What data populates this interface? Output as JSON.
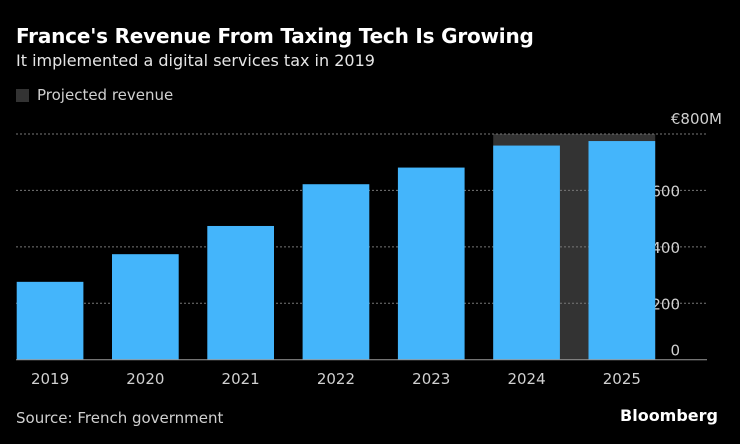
{
  "title": "France's Revenue From Taxing Tech Is Growing",
  "subtitle": "It implemented a digital services tax in 2019",
  "legend": {
    "label": "Projected revenue",
    "color": "#333333"
  },
  "source": "Source: French government",
  "brand": "Bloomberg",
  "chart_data": {
    "type": "bar",
    "categories": [
      "2019",
      "2020",
      "2021",
      "2022",
      "2023",
      "2024",
      "2025"
    ],
    "values": [
      276,
      374,
      474,
      622,
      681,
      759,
      775
    ],
    "unit": "€ millions",
    "projected_categories": [
      "2024",
      "2025"
    ],
    "ylim": [
      0,
      800
    ],
    "yticks": [
      0,
      200,
      400,
      600,
      800
    ],
    "ytick_labels": [
      "0",
      "200",
      "400",
      "600",
      "€800M"
    ],
    "y_axis_position": "right",
    "grid": true,
    "bar_color": "#44b5fb",
    "projected_shade_color": "#333333",
    "legend_position": "top-left"
  }
}
